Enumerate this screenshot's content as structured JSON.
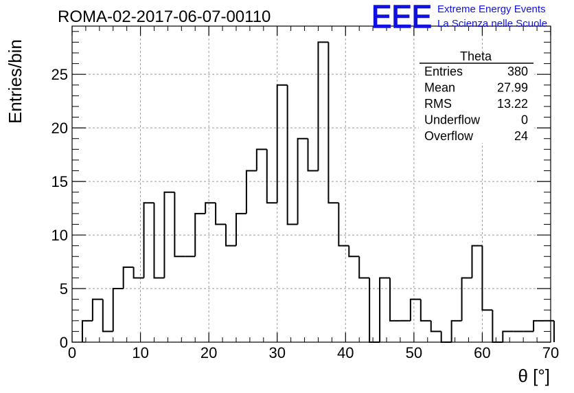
{
  "header": {
    "run_title": "ROMA-02-2017-06-07-00110",
    "logo_text": "EEE",
    "project_line1": "Extreme Energy Events",
    "project_line2": "La Scienza nelle Scuole"
  },
  "stats_box": {
    "title": "Theta",
    "rows": [
      {
        "label": "Entries",
        "value": "380"
      },
      {
        "label": "Mean",
        "value": "27.99"
      },
      {
        "label": "RMS",
        "value": "13.22"
      },
      {
        "label": "Underflow",
        "value": "0"
      },
      {
        "label": "Overflow",
        "value": "24"
      }
    ]
  },
  "colors": {
    "brand": "#1010e0",
    "line": "#000000",
    "grid": "#9a9a9a"
  },
  "chart_data": {
    "type": "histogram",
    "xlabel": "θ [°]",
    "ylabel": "Entries/bin",
    "xlim": [
      0,
      70
    ],
    "ylim": [
      0,
      29.5
    ],
    "x_ticks": [
      0,
      10,
      20,
      30,
      40,
      50,
      60,
      70
    ],
    "y_ticks": [
      0,
      5,
      10,
      15,
      20,
      25
    ],
    "grid": true,
    "bin_width": 1.5,
    "bin_start": 1.5,
    "values": [
      2,
      4,
      1,
      5,
      7,
      6,
      13,
      6,
      14,
      8,
      8,
      12,
      13,
      11,
      9,
      12,
      16,
      18,
      13,
      24,
      11,
      19,
      16,
      28,
      13,
      9,
      8,
      6,
      0,
      6,
      2,
      2,
      4,
      2,
      1,
      0,
      2,
      6,
      9,
      3,
      0,
      1,
      1,
      1,
      2,
      2
    ]
  }
}
